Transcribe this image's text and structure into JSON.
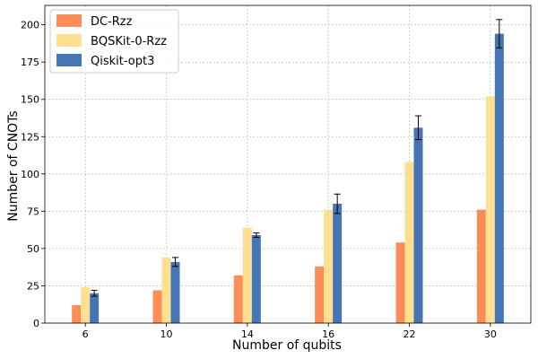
{
  "chart_data": {
    "type": "bar",
    "title": "",
    "xlabel": "Number of qubits",
    "ylabel": "Number of CNOTs",
    "categories": [
      "6",
      "10",
      "14",
      "16",
      "22",
      "30"
    ],
    "ylim": [
      0,
      213
    ],
    "yticks": [
      0,
      25,
      50,
      75,
      100,
      125,
      150,
      175,
      200
    ],
    "grid": true,
    "legend_position": "top-left",
    "series": [
      {
        "name": "DC-Rzz",
        "color": "#fc8d59",
        "values": [
          12,
          22,
          32,
          38,
          54,
          76
        ]
      },
      {
        "name": "BQSKit-0-Rzz",
        "color": "#fee090",
        "values": [
          24,
          44,
          64,
          76,
          108,
          152
        ]
      },
      {
        "name": "Qiskit-opt3",
        "color": "#4575b4",
        "values": [
          20,
          41,
          59,
          80,
          131,
          194
        ],
        "errors": [
          2,
          3,
          1.5,
          6.5,
          8,
          9.5
        ]
      }
    ]
  }
}
